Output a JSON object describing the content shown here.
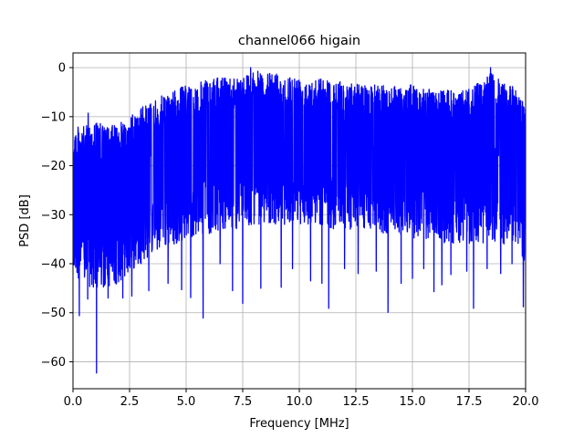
{
  "chart_data": {
    "type": "line",
    "title": "channel066 higain",
    "xlabel": "Frequency [MHz]",
    "ylabel": "PSD [dB]",
    "xlim": [
      0.0,
      20.0
    ],
    "ylim": [
      -65.5,
      3.0
    ],
    "x_ticks": [
      0.0,
      2.5,
      5.0,
      7.5,
      10.0,
      12.5,
      15.0,
      17.5,
      20.0
    ],
    "x_tick_labels": [
      "0.0",
      "2.5",
      "5.0",
      "7.5",
      "10.0",
      "12.5",
      "15.0",
      "17.5",
      "20.0"
    ],
    "y_ticks": [
      0,
      -10,
      -20,
      -30,
      -40,
      -50,
      -60
    ],
    "y_tick_labels": [
      "0",
      "−10",
      "−20",
      "−30",
      "−40",
      "−50",
      "−60"
    ],
    "grid": true,
    "line_color": "#0000ff",
    "series": [
      {
        "name": "",
        "x": [
          0.0,
          0.5,
          1.0,
          1.5,
          2.0,
          2.5,
          3.0,
          3.5,
          4.0,
          4.5,
          5.0,
          5.5,
          6.0,
          6.5,
          7.0,
          7.5,
          8.0,
          8.5,
          9.0,
          9.5,
          10.0,
          10.5,
          11.0,
          11.5,
          12.0,
          12.5,
          13.0,
          13.5,
          14.0,
          14.5,
          15.0,
          15.5,
          16.0,
          16.5,
          17.0,
          17.5,
          18.0,
          18.5,
          19.0,
          19.5,
          20.0
        ],
        "upper": [
          -12,
          -12,
          -11,
          -12,
          -11.5,
          -10,
          -8,
          -7,
          -5.5,
          -4.5,
          -3.5,
          -3,
          -2.5,
          -2,
          -1.8,
          -1.5,
          -0.5,
          -1.2,
          -1,
          -1.5,
          -1.8,
          -2,
          -2,
          -2.5,
          -3,
          -3.2,
          -3.5,
          -3.5,
          -3.5,
          -3.5,
          -3.5,
          -4,
          -4.5,
          -4.5,
          -5,
          -4,
          -3,
          -1,
          -3,
          -4,
          -7
        ],
        "lower": [
          -42,
          -44,
          -46,
          -45,
          -44,
          -42,
          -40,
          -38,
          -37,
          -36,
          -35,
          -34,
          -34,
          -33,
          -33,
          -33,
          -32,
          -32,
          -32,
          -32,
          -32,
          -32,
          -32,
          -33,
          -33,
          -33,
          -33,
          -34,
          -34,
          -34,
          -35,
          -35,
          -35,
          -36,
          -36,
          -36,
          -36,
          -36,
          -36,
          -36,
          -40
        ],
        "deep_dips": [
          [
            0.28,
            -50.6
          ],
          [
            0.65,
            -47.2
          ],
          [
            1.04,
            -62.3
          ],
          [
            1.55,
            -47.0
          ],
          [
            2.2,
            -47.0
          ],
          [
            2.6,
            -46.6
          ],
          [
            3.35,
            -45.5
          ],
          [
            4.2,
            -44.0
          ],
          [
            4.8,
            -45.3
          ],
          [
            5.2,
            -46.9
          ],
          [
            5.75,
            -51.1
          ],
          [
            6.5,
            -40.0
          ],
          [
            7.05,
            -45.5
          ],
          [
            7.5,
            -48.1
          ],
          [
            8.3,
            -45.0
          ],
          [
            9.2,
            -44.8
          ],
          [
            9.7,
            -41.0
          ],
          [
            10.5,
            -43.5
          ],
          [
            11.0,
            -44.0
          ],
          [
            11.3,
            -49.1
          ],
          [
            12.0,
            -41.0
          ],
          [
            12.6,
            -42.0
          ],
          [
            13.4,
            -41.5
          ],
          [
            13.92,
            -49.9
          ],
          [
            14.5,
            -44.0
          ],
          [
            15.0,
            -43.0
          ],
          [
            15.5,
            -41.0
          ],
          [
            15.95,
            -45.7
          ],
          [
            16.3,
            -44.3
          ],
          [
            16.7,
            -42.2
          ],
          [
            17.4,
            -41.5
          ],
          [
            17.7,
            -49.1
          ],
          [
            18.3,
            -41.0
          ],
          [
            18.9,
            -42.0
          ],
          [
            19.4,
            -40.0
          ],
          [
            19.9,
            -48.8
          ]
        ],
        "peaks": [
          [
            0.67,
            -9.3
          ],
          [
            7.85,
            0.0
          ],
          [
            18.45,
            0.0
          ]
        ]
      }
    ]
  }
}
